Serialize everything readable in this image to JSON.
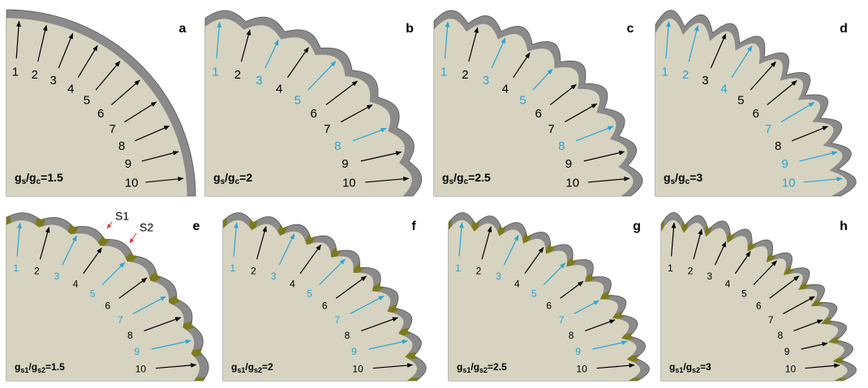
{
  "panels": [
    {
      "letter": "a",
      "ratio": [
        "g",
        "s",
        "/g",
        "c",
        "=1.5"
      ],
      "arrows": [
        {
          "label": "1",
          "color": "#000000"
        },
        {
          "label": "2",
          "color": "#000000"
        },
        {
          "label": "3",
          "color": "#000000"
        },
        {
          "label": "4",
          "color": "#000000"
        },
        {
          "label": "5",
          "color": "#000000"
        },
        {
          "label": "6",
          "color": "#000000"
        },
        {
          "label": "7",
          "color": "#000000"
        },
        {
          "label": "8",
          "color": "#000000"
        },
        {
          "label": "9",
          "color": "#000000"
        },
        {
          "label": "10",
          "color": "#000000"
        }
      ]
    },
    {
      "letter": "b",
      "ratio": [
        "g",
        "s",
        "/g",
        "c",
        "=2"
      ],
      "arrows": [
        {
          "label": "1",
          "color": "#2aa5d6"
        },
        {
          "label": "2",
          "color": "#000000"
        },
        {
          "label": "3",
          "color": "#2aa5d6"
        },
        {
          "label": "4",
          "color": "#000000"
        },
        {
          "label": "5",
          "color": "#2aa5d6"
        },
        {
          "label": "6",
          "color": "#000000"
        },
        {
          "label": "7",
          "color": "#000000"
        },
        {
          "label": "8",
          "color": "#2aa5d6"
        },
        {
          "label": "9",
          "color": "#000000"
        },
        {
          "label": "10",
          "color": "#000000"
        }
      ]
    },
    {
      "letter": "c",
      "ratio": [
        "g",
        "s",
        "/g",
        "c",
        "=2.5"
      ],
      "arrows": [
        {
          "label": "1",
          "color": "#2aa5d6"
        },
        {
          "label": "2",
          "color": "#000000"
        },
        {
          "label": "3",
          "color": "#2aa5d6"
        },
        {
          "label": "4",
          "color": "#000000"
        },
        {
          "label": "5",
          "color": "#2aa5d6"
        },
        {
          "label": "6",
          "color": "#000000"
        },
        {
          "label": "7",
          "color": "#000000"
        },
        {
          "label": "8",
          "color": "#2aa5d6"
        },
        {
          "label": "9",
          "color": "#000000"
        },
        {
          "label": "10",
          "color": "#000000"
        }
      ]
    },
    {
      "letter": "d",
      "ratio": [
        "g",
        "s",
        "/g",
        "c",
        "=3"
      ],
      "arrows": [
        {
          "label": "1",
          "color": "#2aa5d6"
        },
        {
          "label": "2",
          "color": "#2aa5d6"
        },
        {
          "label": "3",
          "color": "#000000"
        },
        {
          "label": "4",
          "color": "#2aa5d6"
        },
        {
          "label": "5",
          "color": "#000000"
        },
        {
          "label": "6",
          "color": "#000000"
        },
        {
          "label": "7",
          "color": "#2aa5d6"
        },
        {
          "label": "8",
          "color": "#000000"
        },
        {
          "label": "9",
          "color": "#2aa5d6"
        },
        {
          "label": "10",
          "color": "#2aa5d6"
        }
      ]
    },
    {
      "letter": "e",
      "ratio": [
        "g",
        "s1",
        "/g",
        "s2",
        "=1.5"
      ],
      "segments": [
        "S1",
        "S2"
      ],
      "arrows": [
        {
          "label": "1",
          "color": "#2aa5d6"
        },
        {
          "label": "2",
          "color": "#000000"
        },
        {
          "label": "3",
          "color": "#2aa5d6"
        },
        {
          "label": "4",
          "color": "#000000"
        },
        {
          "label": "5",
          "color": "#2aa5d6"
        },
        {
          "label": "6",
          "color": "#000000"
        },
        {
          "label": "7",
          "color": "#2aa5d6"
        },
        {
          "label": "8",
          "color": "#000000"
        },
        {
          "label": "9",
          "color": "#2aa5d6"
        },
        {
          "label": "10",
          "color": "#000000"
        }
      ]
    },
    {
      "letter": "f",
      "ratio": [
        "g",
        "s1",
        "/g",
        "s2",
        "=2"
      ],
      "arrows": [
        {
          "label": "1",
          "color": "#2aa5d6"
        },
        {
          "label": "2",
          "color": "#000000"
        },
        {
          "label": "3",
          "color": "#2aa5d6"
        },
        {
          "label": "4",
          "color": "#000000"
        },
        {
          "label": "5",
          "color": "#2aa5d6"
        },
        {
          "label": "6",
          "color": "#000000"
        },
        {
          "label": "7",
          "color": "#2aa5d6"
        },
        {
          "label": "8",
          "color": "#000000"
        },
        {
          "label": "9",
          "color": "#2aa5d6"
        },
        {
          "label": "10",
          "color": "#000000"
        }
      ]
    },
    {
      "letter": "g",
      "ratio": [
        "g",
        "s1",
        "/g",
        "s2",
        "=2.5"
      ],
      "arrows": [
        {
          "label": "1",
          "color": "#2aa5d6"
        },
        {
          "label": "2",
          "color": "#000000"
        },
        {
          "label": "3",
          "color": "#2aa5d6"
        },
        {
          "label": "4",
          "color": "#000000"
        },
        {
          "label": "5",
          "color": "#2aa5d6"
        },
        {
          "label": "6",
          "color": "#000000"
        },
        {
          "label": "7",
          "color": "#2aa5d6"
        },
        {
          "label": "8",
          "color": "#000000"
        },
        {
          "label": "9",
          "color": "#2aa5d6"
        },
        {
          "label": "10",
          "color": "#000000"
        }
      ]
    },
    {
      "letter": "h",
      "ratio": [
        "g",
        "s1",
        "/g",
        "s2",
        "=3"
      ],
      "arrows": [
        {
          "label": "1",
          "color": "#000000"
        },
        {
          "label": "2",
          "color": "#000000"
        },
        {
          "label": "3",
          "color": "#000000"
        },
        {
          "label": "4",
          "color": "#000000"
        },
        {
          "label": "5",
          "color": "#000000"
        },
        {
          "label": "6",
          "color": "#000000"
        },
        {
          "label": "7",
          "color": "#000000"
        },
        {
          "label": "8",
          "color": "#000000"
        },
        {
          "label": "9",
          "color": "#000000"
        },
        {
          "label": "10",
          "color": "#000000"
        }
      ]
    }
  ]
}
